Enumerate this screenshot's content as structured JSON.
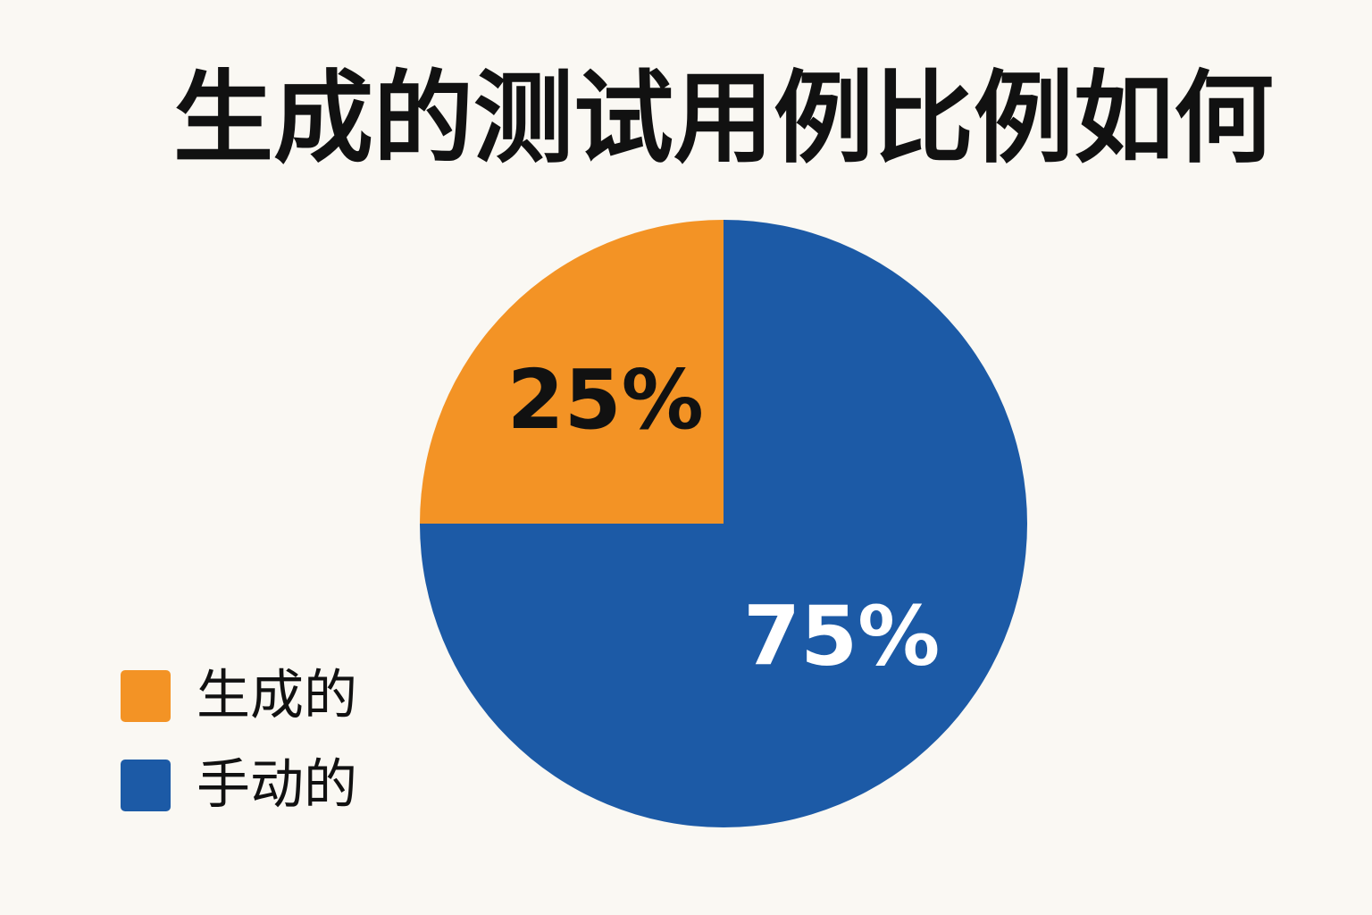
{
  "chart_data": {
    "type": "pie",
    "title": "生成的测试用例比例如何",
    "categories": [
      "生成的",
      "手动的"
    ],
    "values": [
      25,
      75
    ],
    "value_labels": [
      "25%",
      "75%"
    ],
    "colors": [
      "#f39325",
      "#1c5aa6"
    ],
    "label_colors": [
      "#111111",
      "#ffffff"
    ],
    "legend": "bottom-left"
  }
}
